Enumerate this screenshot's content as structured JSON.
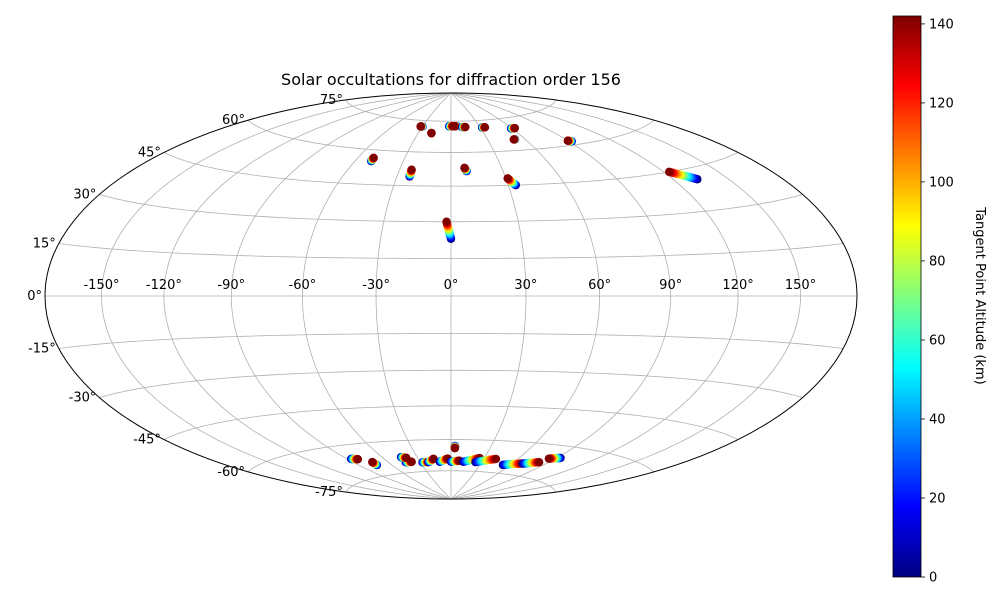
{
  "chart_data": {
    "type": "scatter",
    "projection": "hammer",
    "title": "Solar occultations for diffraction order 156",
    "grid": true,
    "longitude_ticks": [
      -150,
      -120,
      -90,
      -60,
      -30,
      0,
      30,
      60,
      90,
      120,
      150
    ],
    "latitude_ticks": [
      -75,
      -60,
      -45,
      -30,
      -15,
      0,
      15,
      30,
      45,
      60,
      75
    ],
    "longitude_tick_labels": [
      "-150°",
      "-120°",
      "-90°",
      "-60°",
      "-30°",
      "0°",
      "30°",
      "60°",
      "90°",
      "120°",
      "150°"
    ],
    "latitude_tick_labels": [
      "-75°",
      "-60°",
      "-45°",
      "-30°",
      "-15°",
      "0°",
      "15°",
      "30°",
      "45°",
      "60°",
      "75°"
    ],
    "colorbar": {
      "label": "Tangent Point Altitude (km)",
      "range": [
        0,
        142
      ],
      "ticks": [
        0,
        20,
        40,
        60,
        80,
        100,
        120,
        140
      ],
      "tick_labels": [
        "0",
        "20",
        "40",
        "60",
        "80",
        "100",
        "120",
        "140"
      ],
      "colormap": "jet"
    },
    "tracks": [
      {
        "lon_start": -30,
        "lat_start": 72,
        "lon_end": -32,
        "lat_end": 72
      },
      {
        "lon_start": -18,
        "lat_start": 69,
        "lon_end": -18,
        "lat_end": 69
      },
      {
        "lon_start": -2,
        "lat_start": 72.5,
        "lon_end": 2,
        "lat_end": 72.5
      },
      {
        "lon_start": 6,
        "lat_start": 72.5,
        "lon_end": 4,
        "lat_end": 72.5
      },
      {
        "lon_start": 12,
        "lat_start": 72,
        "lon_end": 15,
        "lat_end": 72
      },
      {
        "lon_start": 32,
        "lat_start": 71.5,
        "lon_end": 35,
        "lat_end": 71.5
      },
      {
        "lon_start": 59,
        "lat_start": 70,
        "lon_end": 63,
        "lat_end": 70
      },
      {
        "lon_start": 52,
        "lat_start": 65,
        "lon_end": 51,
        "lat_end": 65
      },
      {
        "lon_start": 92,
        "lat_start": 61.5,
        "lon_end": 90,
        "lat_end": 62
      },
      {
        "lon_start": -50,
        "lat_start": 55,
        "lon_end": -50,
        "lat_end": 56.5
      },
      {
        "lon_start": -23,
        "lat_start": 49,
        "lon_end": -23,
        "lat_end": 52
      },
      {
        "lon_start": 9,
        "lat_start": 51.5,
        "lon_end": 8,
        "lat_end": 53
      },
      {
        "lon_start": 34,
        "lat_start": 45,
        "lon_end": 31,
        "lat_end": 48
      },
      {
        "lon_start": 133,
        "lat_start": 41,
        "lon_end": 123,
        "lat_end": 45
      },
      {
        "lon_start": 0,
        "lat_start": 23,
        "lon_end": -2,
        "lat_end": 30
      },
      {
        "lon_start": -87,
        "lat_start": -66,
        "lon_end": -82,
        "lat_end": -66.5
      },
      {
        "lon_start": -74,
        "lat_start": -70,
        "lon_end": -74,
        "lat_end": -68.5
      },
      {
        "lon_start": -44,
        "lat_start": -70,
        "lon_end": -38,
        "lat_end": -70
      },
      {
        "lon_start": -44,
        "lat_start": -67.5,
        "lon_end": -40,
        "lat_end": -68
      },
      {
        "lon_start": -28,
        "lat_start": -70.5,
        "lon_end": -22,
        "lat_end": -70.5
      },
      {
        "lon_start": -22,
        "lat_start": -70.5,
        "lon_end": -16,
        "lat_end": -69
      },
      {
        "lon_start": -11,
        "lat_start": -70.5,
        "lon_end": -3,
        "lat_end": -69
      },
      {
        "lon_start": 3,
        "lat_start": -63,
        "lon_end": 3,
        "lat_end": -64
      },
      {
        "lon_start": 0,
        "lat_start": -70.5,
        "lon_end": 8,
        "lat_end": -70
      },
      {
        "lon_start": 12,
        "lat_start": -70.5,
        "lon_end": 26,
        "lat_end": -68.5
      },
      {
        "lon_start": 24,
        "lat_start": -70.5,
        "lon_end": 41,
        "lat_end": -68.5
      },
      {
        "lon_start": 53,
        "lat_start": -71,
        "lon_end": 69,
        "lat_end": -69.5
      },
      {
        "lon_start": 70,
        "lat_start": -69.5,
        "lon_end": 82,
        "lat_end": -68
      },
      {
        "lon_start": 93,
        "lat_start": -65,
        "lon_end": 85,
        "lat_end": -66
      }
    ]
  }
}
